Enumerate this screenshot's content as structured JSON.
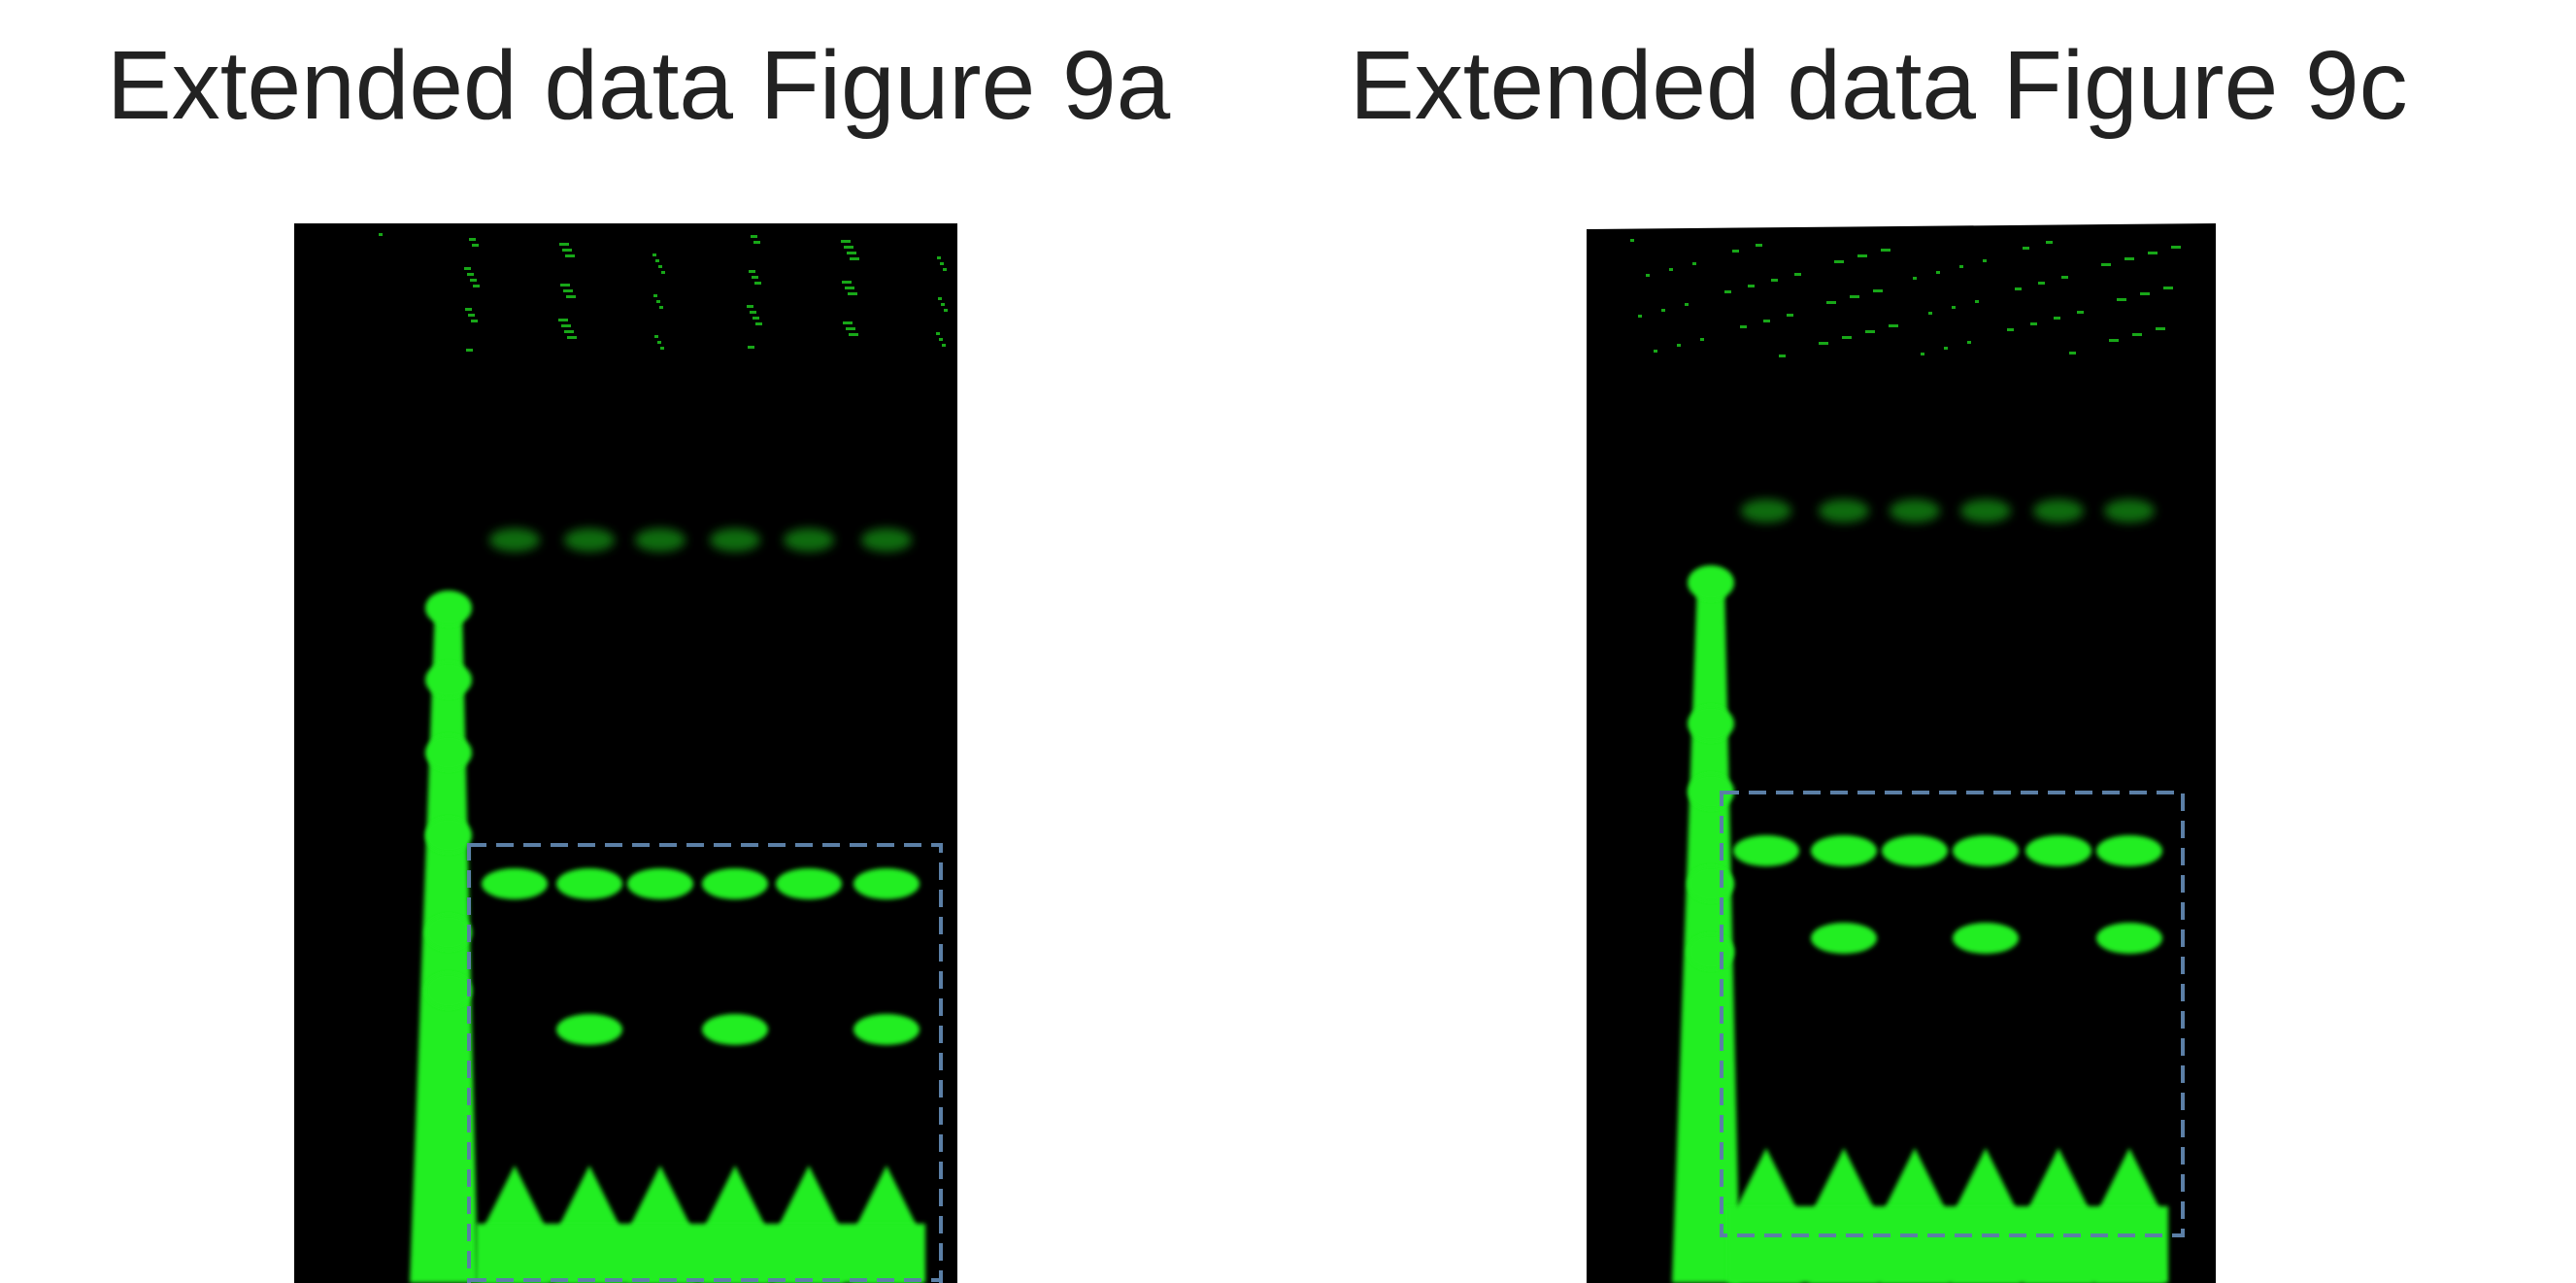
{
  "figures": [
    {
      "title": "Extended data Figure 9a"
    },
    {
      "title": "Extended data Figure 9c"
    }
  ]
}
